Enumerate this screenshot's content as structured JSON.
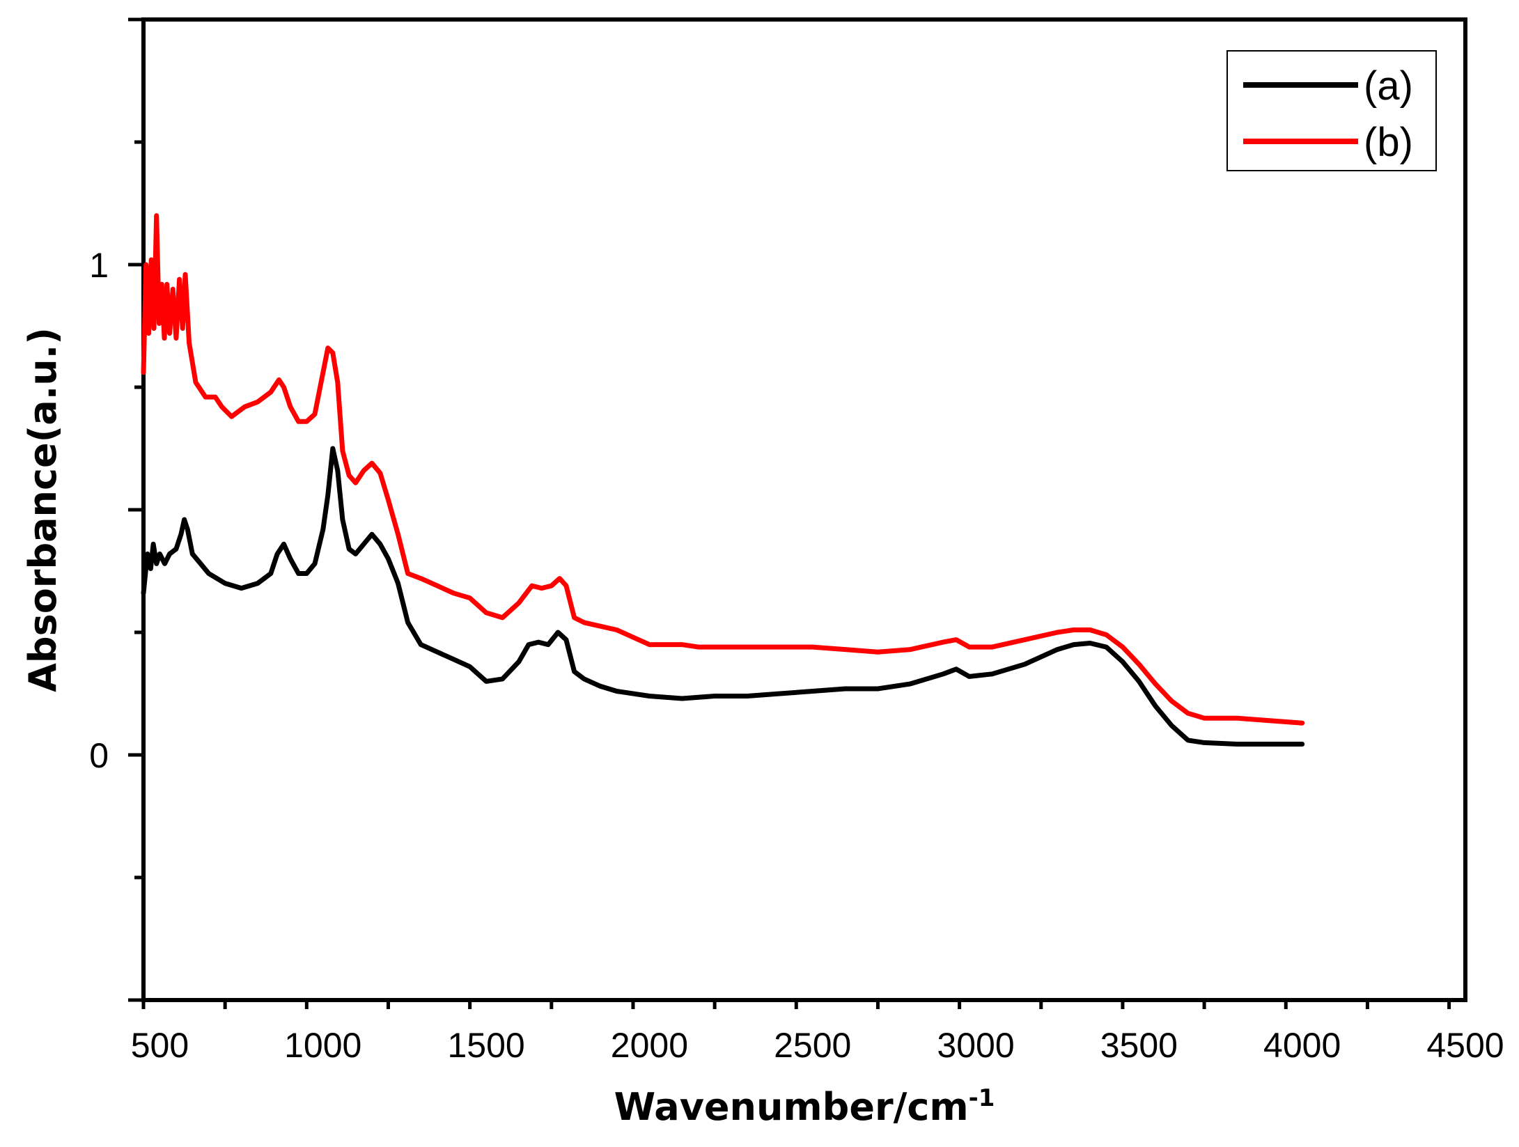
{
  "chart_data": {
    "type": "line",
    "title": "",
    "xlabel": "Wavenumber/cm",
    "xlabel_superscript": "-1",
    "ylabel": "Absorbance(a.u.)",
    "xlim": [
      450,
      4500
    ],
    "ylim": [
      -0.5,
      1.5
    ],
    "x_ticks": [
      {
        "value": 500,
        "label": "500"
      },
      {
        "value": 1000,
        "label": "1000"
      },
      {
        "value": 1500,
        "label": "1500"
      },
      {
        "value": 2000,
        "label": "2000"
      },
      {
        "value": 2500,
        "label": "2500"
      },
      {
        "value": 3000,
        "label": "3000"
      },
      {
        "value": 3500,
        "label": "3500"
      },
      {
        "value": 4000,
        "label": "4000"
      },
      {
        "value": 4500,
        "label": "4500"
      }
    ],
    "y_ticks": [
      {
        "value": 0,
        "label": "0"
      },
      {
        "value": 1,
        "label": "1"
      }
    ],
    "grid": false,
    "legend_position": "top-right",
    "series": [
      {
        "name": "(a)",
        "color": "#000000",
        "points": [
          [
            450,
            0.33
          ],
          [
            462,
            0.41
          ],
          [
            472,
            0.38
          ],
          [
            480,
            0.43
          ],
          [
            490,
            0.39
          ],
          [
            500,
            0.41
          ],
          [
            515,
            0.39
          ],
          [
            530,
            0.41
          ],
          [
            550,
            0.42
          ],
          [
            565,
            0.45
          ],
          [
            575,
            0.48
          ],
          [
            585,
            0.46
          ],
          [
            600,
            0.41
          ],
          [
            625,
            0.39
          ],
          [
            650,
            0.37
          ],
          [
            700,
            0.35
          ],
          [
            750,
            0.34
          ],
          [
            800,
            0.35
          ],
          [
            840,
            0.37
          ],
          [
            860,
            0.41
          ],
          [
            880,
            0.43
          ],
          [
            900,
            0.4
          ],
          [
            925,
            0.37
          ],
          [
            950,
            0.37
          ],
          [
            975,
            0.39
          ],
          [
            1000,
            0.46
          ],
          [
            1015,
            0.53
          ],
          [
            1030,
            0.625
          ],
          [
            1045,
            0.58
          ],
          [
            1060,
            0.48
          ],
          [
            1080,
            0.42
          ],
          [
            1100,
            0.41
          ],
          [
            1125,
            0.43
          ],
          [
            1150,
            0.45
          ],
          [
            1175,
            0.43
          ],
          [
            1200,
            0.4
          ],
          [
            1230,
            0.35
          ],
          [
            1260,
            0.27
          ],
          [
            1300,
            0.225
          ],
          [
            1350,
            0.21
          ],
          [
            1400,
            0.195
          ],
          [
            1450,
            0.18
          ],
          [
            1500,
            0.15
          ],
          [
            1550,
            0.155
          ],
          [
            1600,
            0.19
          ],
          [
            1630,
            0.225
          ],
          [
            1660,
            0.23
          ],
          [
            1690,
            0.225
          ],
          [
            1720,
            0.25
          ],
          [
            1745,
            0.235
          ],
          [
            1770,
            0.17
          ],
          [
            1800,
            0.155
          ],
          [
            1850,
            0.14
          ],
          [
            1900,
            0.13
          ],
          [
            2000,
            0.12
          ],
          [
            2100,
            0.115
          ],
          [
            2200,
            0.12
          ],
          [
            2300,
            0.12
          ],
          [
            2400,
            0.125
          ],
          [
            2500,
            0.13
          ],
          [
            2600,
            0.135
          ],
          [
            2700,
            0.135
          ],
          [
            2800,
            0.145
          ],
          [
            2900,
            0.165
          ],
          [
            2940,
            0.175
          ],
          [
            2980,
            0.16
          ],
          [
            3050,
            0.165
          ],
          [
            3150,
            0.185
          ],
          [
            3250,
            0.215
          ],
          [
            3300,
            0.225
          ],
          [
            3350,
            0.228
          ],
          [
            3400,
            0.22
          ],
          [
            3450,
            0.19
          ],
          [
            3500,
            0.15
          ],
          [
            3550,
            0.1
          ],
          [
            3600,
            0.06
          ],
          [
            3650,
            0.03
          ],
          [
            3700,
            0.025
          ],
          [
            3800,
            0.022
          ],
          [
            3900,
            0.022
          ],
          [
            4000,
            0.022
          ]
        ]
      },
      {
        "name": "(b)",
        "color": "#ff0000",
        "points": [
          [
            450,
            0.78
          ],
          [
            458,
            1.0
          ],
          [
            466,
            0.86
          ],
          [
            474,
            1.01
          ],
          [
            482,
            0.87
          ],
          [
            490,
            1.1
          ],
          [
            498,
            0.88
          ],
          [
            506,
            0.96
          ],
          [
            514,
            0.85
          ],
          [
            522,
            0.96
          ],
          [
            530,
            0.86
          ],
          [
            540,
            0.95
          ],
          [
            550,
            0.85
          ],
          [
            560,
            0.97
          ],
          [
            570,
            0.87
          ],
          [
            578,
            0.98
          ],
          [
            590,
            0.84
          ],
          [
            610,
            0.76
          ],
          [
            640,
            0.73
          ],
          [
            670,
            0.73
          ],
          [
            690,
            0.71
          ],
          [
            720,
            0.69
          ],
          [
            760,
            0.71
          ],
          [
            800,
            0.72
          ],
          [
            840,
            0.74
          ],
          [
            865,
            0.765
          ],
          [
            880,
            0.75
          ],
          [
            900,
            0.71
          ],
          [
            925,
            0.68
          ],
          [
            950,
            0.68
          ],
          [
            975,
            0.695
          ],
          [
            1000,
            0.78
          ],
          [
            1015,
            0.83
          ],
          [
            1030,
            0.82
          ],
          [
            1045,
            0.76
          ],
          [
            1060,
            0.62
          ],
          [
            1080,
            0.57
          ],
          [
            1100,
            0.555
          ],
          [
            1125,
            0.58
          ],
          [
            1150,
            0.595
          ],
          [
            1175,
            0.575
          ],
          [
            1200,
            0.52
          ],
          [
            1230,
            0.45
          ],
          [
            1260,
            0.37
          ],
          [
            1300,
            0.36
          ],
          [
            1350,
            0.345
          ],
          [
            1400,
            0.33
          ],
          [
            1450,
            0.32
          ],
          [
            1500,
            0.29
          ],
          [
            1550,
            0.28
          ],
          [
            1600,
            0.31
          ],
          [
            1640,
            0.345
          ],
          [
            1670,
            0.34
          ],
          [
            1700,
            0.345
          ],
          [
            1725,
            0.36
          ],
          [
            1745,
            0.345
          ],
          [
            1770,
            0.28
          ],
          [
            1800,
            0.27
          ],
          [
            1900,
            0.255
          ],
          [
            2000,
            0.225
          ],
          [
            2100,
            0.225
          ],
          [
            2150,
            0.22
          ],
          [
            2200,
            0.22
          ],
          [
            2300,
            0.22
          ],
          [
            2400,
            0.22
          ],
          [
            2500,
            0.22
          ],
          [
            2600,
            0.215
          ],
          [
            2700,
            0.21
          ],
          [
            2800,
            0.215
          ],
          [
            2900,
            0.23
          ],
          [
            2940,
            0.235
          ],
          [
            2980,
            0.22
          ],
          [
            3050,
            0.22
          ],
          [
            3150,
            0.235
          ],
          [
            3250,
            0.25
          ],
          [
            3300,
            0.255
          ],
          [
            3350,
            0.255
          ],
          [
            3400,
            0.245
          ],
          [
            3450,
            0.22
          ],
          [
            3500,
            0.185
          ],
          [
            3550,
            0.145
          ],
          [
            3600,
            0.11
          ],
          [
            3650,
            0.085
          ],
          [
            3700,
            0.075
          ],
          [
            3800,
            0.075
          ],
          [
            3900,
            0.07
          ],
          [
            4000,
            0.065
          ]
        ]
      }
    ]
  }
}
